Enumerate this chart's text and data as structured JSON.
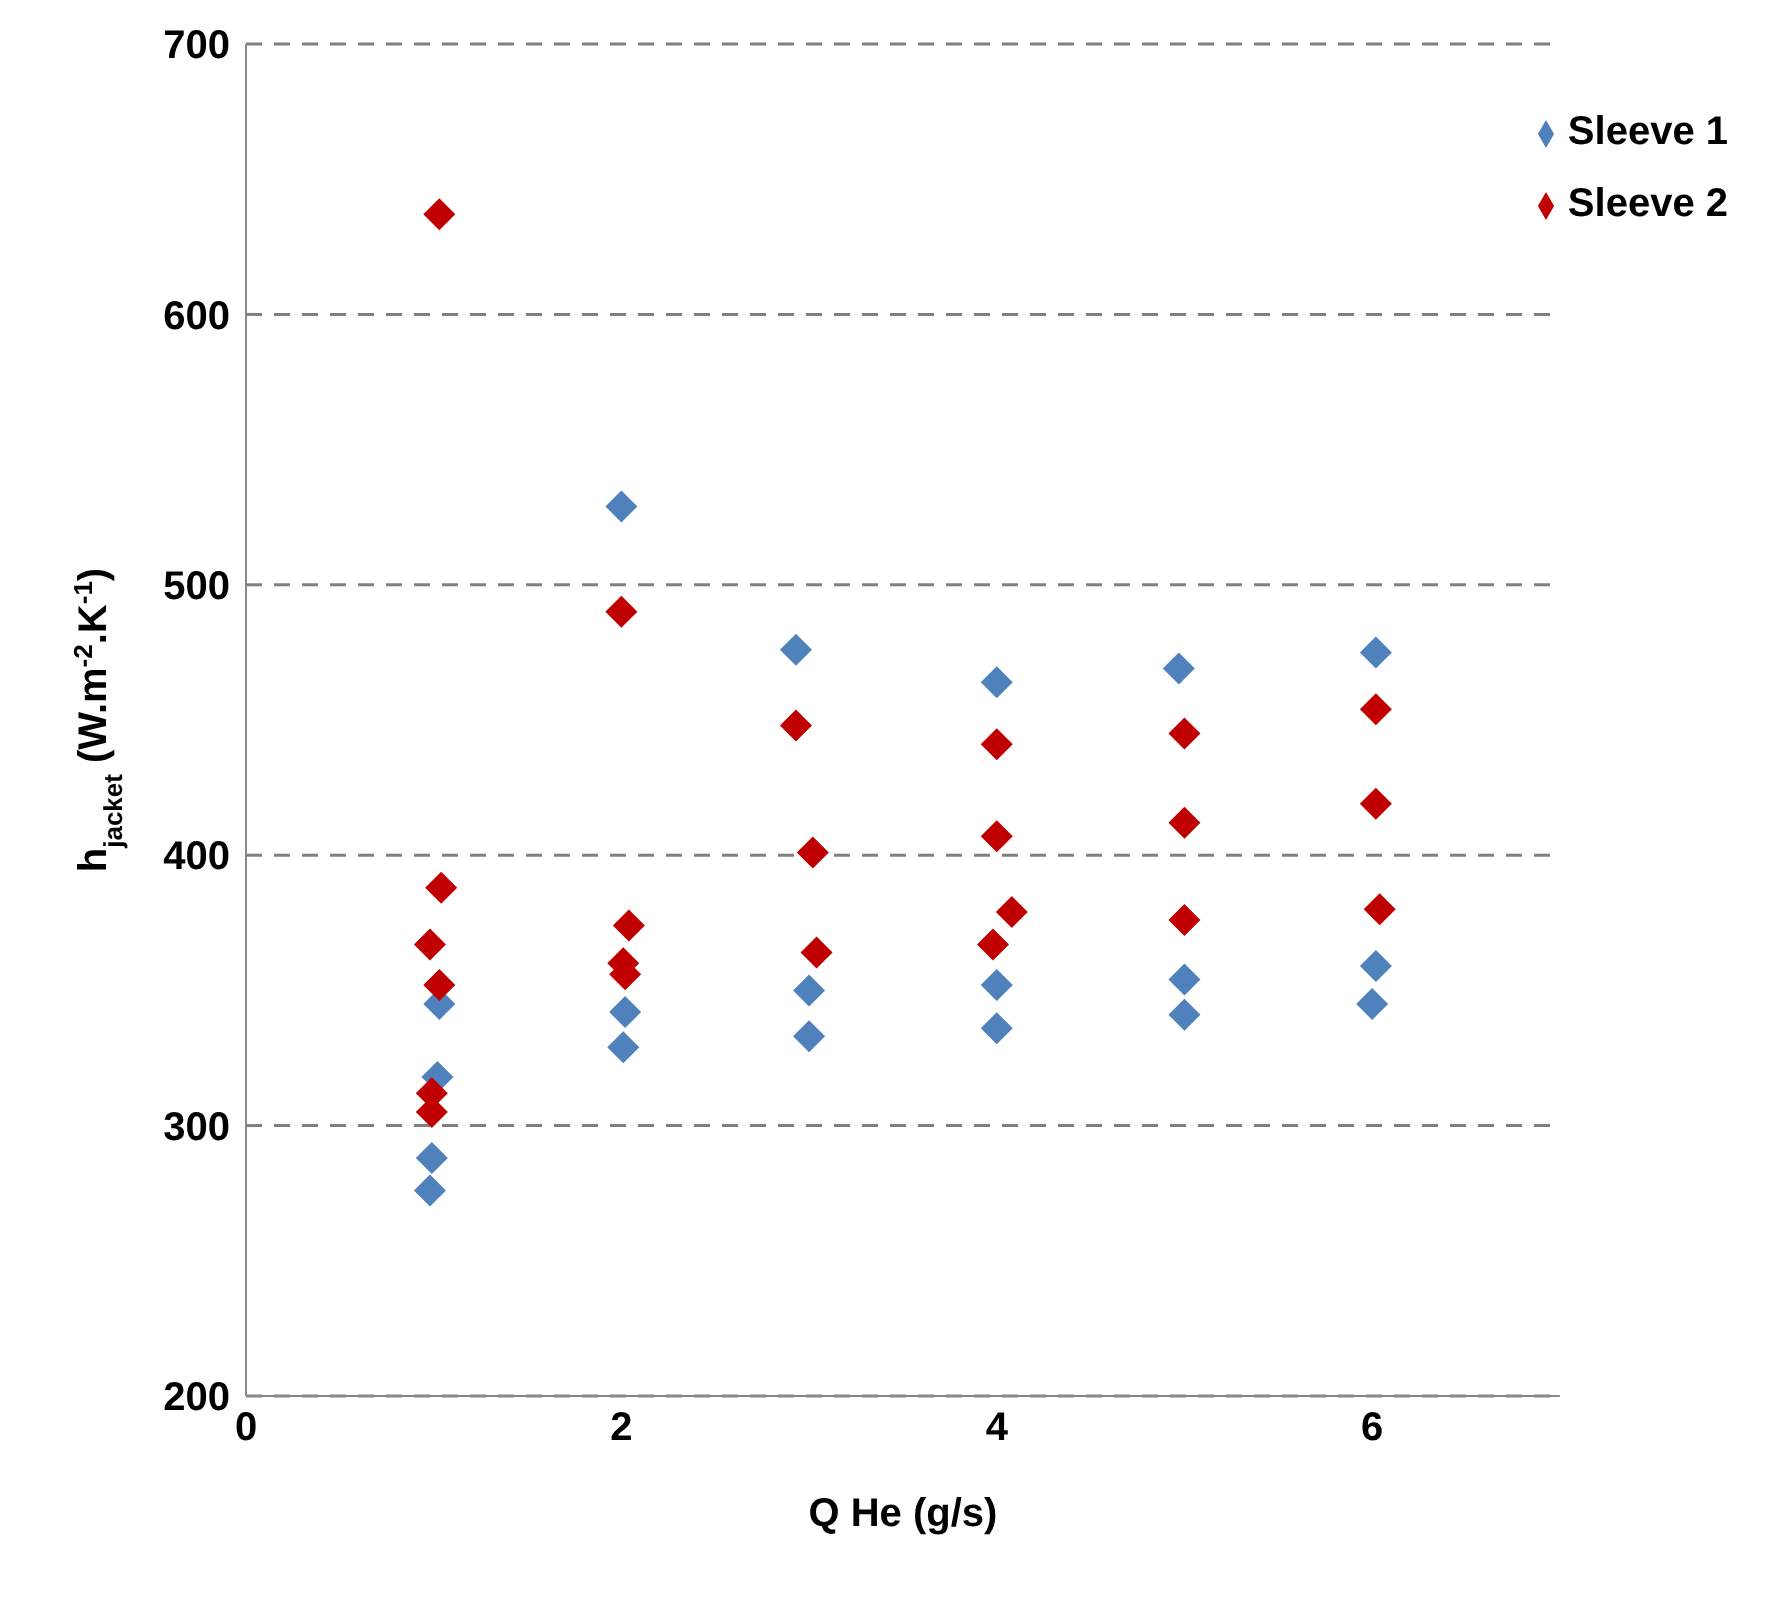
{
  "chart_data": {
    "type": "scatter",
    "xlabel": "Q He (g/s)",
    "ylabel": "h$_{jacket}$ (W.m$^{-2}$.K$^{-1}$)",
    "xlim": [
      0,
      7
    ],
    "xticks": [
      0,
      2,
      4,
      6
    ],
    "ylim": [
      200,
      700
    ],
    "yticks": [
      200,
      300,
      400,
      500,
      600,
      700
    ],
    "grid": "y",
    "legend": "top right",
    "marker": "diamond",
    "series": [
      {
        "name": "Sleeve 1",
        "color": "#4f81bd",
        "x": [
          0.98,
          0.99,
          1.02,
          1.03,
          2.0,
          2.02,
          2.01,
          2.93,
          3.0,
          3.0,
          4.0,
          4.0,
          4.0,
          4.97,
          5.0,
          5.0,
          6.02,
          6.02,
          6.0
        ],
        "values": [
          276,
          288,
          318,
          345,
          529,
          342,
          329,
          476,
          350,
          333,
          464,
          352,
          336,
          469,
          354,
          341,
          475,
          359,
          345
        ]
      },
      {
        "name": "Sleeve 2",
        "color": "#c00000",
        "x": [
          1.03,
          1.04,
          0.98,
          1.03,
          0.99,
          0.99,
          2.0,
          2.04,
          2.01,
          2.02,
          2.93,
          3.02,
          3.04,
          4.0,
          4.0,
          4.08,
          3.98,
          5.0,
          5.0,
          5.0,
          6.02,
          6.02,
          6.04
        ],
        "values": [
          637,
          388,
          367,
          352,
          312,
          305,
          490,
          374,
          360,
          356,
          448,
          401,
          364,
          441,
          407,
          379,
          367,
          445,
          412,
          376,
          454,
          419,
          380
        ]
      }
    ]
  }
}
